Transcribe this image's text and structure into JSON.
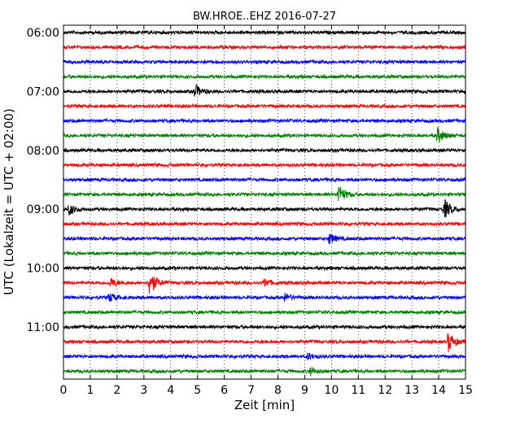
{
  "chart_data": {
    "type": "line",
    "title": "BW.HROE..EHZ 2016-07-27",
    "xlabel": "Zeit  [min]",
    "ylabel": "UTC (Lokalzeit = UTC + 02:00)",
    "xlim": [
      0,
      15
    ],
    "x_ticks": [
      "0",
      "1",
      "2",
      "3",
      "4",
      "5",
      "6",
      "7",
      "8",
      "9",
      "10",
      "11",
      "12",
      "13",
      "14",
      "15"
    ],
    "y_ticks": [
      "06:00",
      "07:00",
      "08:00",
      "09:00",
      "10:00",
      "11:00"
    ],
    "grid": "vertical dotted",
    "trace_colors": [
      "#000000",
      "#ff0000",
      "#0000ff",
      "#008000"
    ],
    "trace_start_times": [
      "06:00",
      "06:15",
      "06:30",
      "06:45",
      "07:00",
      "07:15",
      "07:30",
      "07:45",
      "08:00",
      "08:15",
      "08:30",
      "08:45",
      "09:00",
      "09:15",
      "09:30",
      "09:45",
      "10:00",
      "10:15",
      "10:30",
      "10:45",
      "11:00",
      "11:15",
      "11:30",
      "11:45"
    ],
    "events": [
      {
        "trace": "07:00",
        "minute": 4.9,
        "amplitude": 0.6
      },
      {
        "trace": "07:45",
        "minute": 13.95,
        "amplitude": 0.7
      },
      {
        "trace": "08:45",
        "minute": 10.25,
        "amplitude": 0.9
      },
      {
        "trace": "09:00",
        "minute": 0.2,
        "amplitude": 0.5
      },
      {
        "trace": "09:00",
        "minute": 14.2,
        "amplitude": 0.9
      },
      {
        "trace": "09:30",
        "minute": 9.9,
        "amplitude": 0.5
      },
      {
        "trace": "10:15",
        "minute": 3.2,
        "amplitude": 1.2
      },
      {
        "trace": "10:15",
        "minute": 1.75,
        "amplitude": 0.4
      },
      {
        "trace": "10:15",
        "minute": 7.5,
        "amplitude": 0.35
      },
      {
        "trace": "10:30",
        "minute": 1.7,
        "amplitude": 0.4
      },
      {
        "trace": "10:30",
        "minute": 8.25,
        "amplitude": 0.35
      },
      {
        "trace": "11:15",
        "minute": 14.35,
        "amplitude": 0.9
      },
      {
        "trace": "11:30",
        "minute": 9.1,
        "amplitude": 0.3
      },
      {
        "trace": "11:45",
        "minute": 9.2,
        "amplitude": 0.35
      }
    ]
  }
}
